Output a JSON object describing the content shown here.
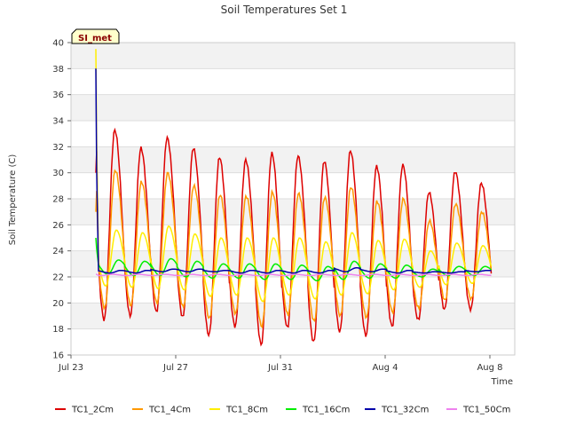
{
  "chart_data": {
    "type": "line",
    "title": "Soil Temperatures Set 1",
    "xlabel": "Time",
    "ylabel": "Soil Temperature (C)",
    "ylim": [
      16,
      40
    ],
    "y_ticks": [
      16,
      18,
      20,
      22,
      24,
      26,
      28,
      30,
      32,
      34,
      36,
      38,
      40
    ],
    "x_range_days_from_jul23": [
      0,
      9.7
    ],
    "x_ticks": [
      {
        "label": "Jul 23",
        "day": 0
      },
      {
        "label": "Jul 27",
        "day": 4
      },
      {
        "label": "Jul 31",
        "day": 8
      },
      {
        "label": "Aug 4",
        "day": 12
      },
      {
        "label": "Aug 8",
        "day": 16
      }
    ],
    "grid": true,
    "legend_position": "bottom",
    "site_label": "SI_met",
    "series": [
      {
        "name": "TC1_2Cm",
        "color": "#dd0000",
        "start_value": 30.0,
        "daily_max": [
          33.3,
          31.9,
          32.7,
          31.9,
          31.2,
          31.0,
          31.5,
          31.3,
          30.9,
          31.7,
          30.5,
          30.6,
          28.5,
          30.1,
          29.2
        ],
        "daily_min": [
          18.7,
          19.0,
          19.3,
          18.9,
          17.5,
          18.2,
          16.8,
          18.1,
          17.0,
          17.8,
          17.5,
          18.2,
          18.7,
          19.5,
          19.5
        ]
      },
      {
        "name": "TC1_4Cm",
        "color": "#ff9900",
        "start_value": 27.0,
        "daily_max": [
          30.2,
          29.3,
          30.0,
          29.0,
          28.3,
          28.2,
          28.5,
          28.4,
          28.1,
          28.9,
          27.8,
          28.0,
          26.3,
          27.6,
          27.0
        ],
        "daily_min": [
          19.6,
          19.8,
          20.0,
          19.7,
          18.8,
          19.2,
          18.2,
          19.1,
          18.6,
          19.0,
          18.9,
          19.3,
          19.6,
          20.2,
          20.3
        ]
      },
      {
        "name": "TC1_8Cm",
        "color": "#ffee00",
        "start_value": 39.5,
        "daily_max": [
          25.6,
          25.4,
          25.9,
          25.3,
          25.0,
          25.0,
          25.0,
          25.0,
          24.7,
          25.4,
          24.8,
          24.9,
          24.0,
          24.6,
          24.4
        ],
        "daily_min": [
          21.3,
          21.2,
          21.1,
          21.0,
          20.5,
          20.6,
          20.1,
          20.6,
          20.3,
          20.6,
          20.7,
          21.0,
          21.2,
          21.4,
          21.5
        ]
      },
      {
        "name": "TC1_16Cm",
        "color": "#00ee00",
        "start_value": 25.0,
        "daily_max": [
          23.3,
          23.2,
          23.4,
          23.2,
          23.0,
          23.0,
          23.0,
          22.9,
          22.8,
          23.2,
          23.0,
          22.9,
          22.6,
          22.8,
          22.8
        ],
        "daily_min": [
          22.2,
          22.1,
          22.1,
          22.0,
          21.9,
          21.9,
          21.8,
          21.8,
          21.7,
          21.8,
          21.9,
          21.9,
          22.0,
          22.1,
          22.1
        ]
      },
      {
        "name": "TC1_32Cm",
        "color": "#0000aa",
        "start_value": 38.0,
        "daily_max": [
          22.5,
          22.5,
          22.6,
          22.6,
          22.5,
          22.5,
          22.5,
          22.5,
          22.5,
          22.7,
          22.6,
          22.5,
          22.4,
          22.4,
          22.5
        ],
        "daily_min": [
          22.3,
          22.3,
          22.4,
          22.4,
          22.4,
          22.3,
          22.3,
          22.3,
          22.3,
          22.4,
          22.4,
          22.3,
          22.3,
          22.3,
          22.4
        ]
      },
      {
        "name": "TC1_50Cm",
        "color": "#ee82ee",
        "start_value": 22.2,
        "daily_max": [
          22.2,
          22.2,
          22.2,
          22.2,
          22.2,
          22.2,
          22.2,
          22.2,
          22.2,
          22.2,
          22.2,
          22.2,
          22.2,
          22.2,
          22.2
        ],
        "daily_min": [
          22.1,
          22.1,
          22.1,
          22.1,
          22.1,
          22.1,
          22.1,
          22.1,
          22.1,
          22.1,
          22.1,
          22.1,
          22.1,
          22.1,
          22.1
        ]
      }
    ]
  }
}
